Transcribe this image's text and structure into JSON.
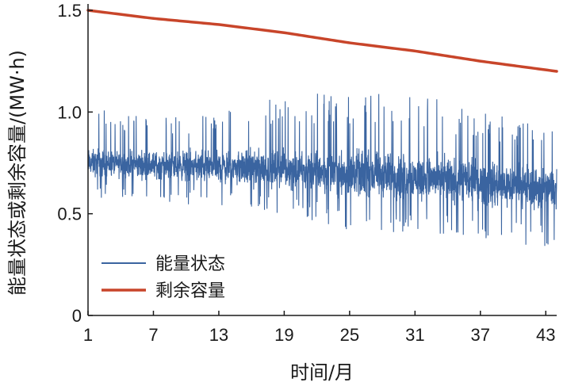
{
  "chart_data": {
    "type": "line",
    "title": "",
    "xlabel": "时间/月",
    "ylabel": "能量状态或剩余容量/(MW·h)",
    "xlim": [
      1,
      44
    ],
    "ylim": [
      0,
      1.5
    ],
    "x_ticks": [
      "1",
      "7",
      "13",
      "19",
      "25",
      "31",
      "37",
      "43"
    ],
    "y_ticks": [
      "0",
      "0.5",
      "1.0",
      "1.5"
    ],
    "grid": false,
    "legend_position": "bottom-left",
    "series": [
      {
        "name": "能量状态",
        "color": "#3a64a0",
        "style": "noisy-line",
        "x": [
          1,
          7,
          13,
          19,
          25,
          31,
          37,
          44
        ],
        "mean": [
          0.75,
          0.74,
          0.73,
          0.72,
          0.7,
          0.68,
          0.65,
          0.62
        ],
        "min": [
          0.58,
          0.57,
          0.52,
          0.5,
          0.42,
          0.4,
          0.37,
          0.33
        ],
        "max": [
          1.04,
          0.98,
          1.0,
          1.1,
          1.08,
          1.11,
          1.0,
          0.93
        ]
      },
      {
        "name": "剩余容量",
        "color": "#c8452a",
        "style": "line",
        "x": [
          1,
          7,
          13,
          19,
          25,
          31,
          37,
          44
        ],
        "values": [
          1.5,
          1.46,
          1.43,
          1.39,
          1.34,
          1.3,
          1.25,
          1.2
        ]
      }
    ]
  }
}
